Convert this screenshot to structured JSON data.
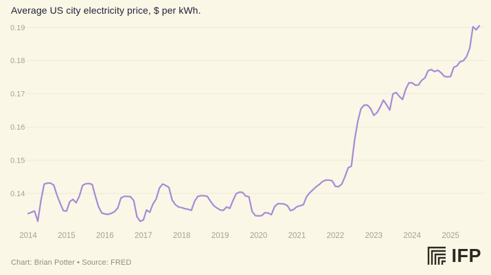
{
  "title": "Average US city electricity price, $ per kWh.",
  "footer": {
    "credit": "Chart: Brian Potter • Source: FRED",
    "logo_text": "IFP"
  },
  "colors": {
    "background": "#FAF7E6",
    "line": "#A78BD9",
    "grid": "#ECE9D7",
    "axis_label": "#A5A296",
    "title_text": "#22213A",
    "footer_text": "#8F8D82",
    "logo": "#2B2A20"
  },
  "chart_data": {
    "type": "line",
    "title": "Average US city electricity price, $ per kWh.",
    "xlabel": "",
    "ylabel": "$ per kWh",
    "grid": "horizontal",
    "legend": "none",
    "x_tick_labels": [
      "2014",
      "2015",
      "2016",
      "2017",
      "2018",
      "2019",
      "2020",
      "2021",
      "2022",
      "2023",
      "2024",
      "2025"
    ],
    "y_ticks": [
      0.14,
      0.15,
      0.16,
      0.17,
      0.18,
      0.19
    ],
    "ylim": [
      0.131,
      0.192
    ],
    "series": [
      {
        "name": "Average US city electricity price ($ per kWh)",
        "frequency": "monthly",
        "start": "2014-01",
        "end": "2025-10",
        "values": [
          0.1339,
          0.1343,
          0.1347,
          0.1316,
          0.1378,
          0.1428,
          0.1431,
          0.1431,
          0.1425,
          0.1395,
          0.137,
          0.1348,
          0.1347,
          0.1375,
          0.1382,
          0.1372,
          0.1392,
          0.1424,
          0.1429,
          0.143,
          0.1427,
          0.1392,
          0.136,
          0.1341,
          0.1338,
          0.1337,
          0.134,
          0.1345,
          0.1356,
          0.1386,
          0.1391,
          0.1391,
          0.139,
          0.1378,
          0.133,
          0.1316,
          0.132,
          0.135,
          0.1343,
          0.1368,
          0.1383,
          0.1416,
          0.1428,
          0.1424,
          0.1418,
          0.138,
          0.1366,
          0.1359,
          0.1357,
          0.1354,
          0.1352,
          0.1349,
          0.1376,
          0.1391,
          0.1393,
          0.1393,
          0.1391,
          0.1376,
          0.1363,
          0.1356,
          0.135,
          0.1349,
          0.1359,
          0.1355,
          0.1378,
          0.1399,
          0.1404,
          0.1403,
          0.1392,
          0.139,
          0.1345,
          0.1333,
          0.1332,
          0.1333,
          0.1342,
          0.1341,
          0.1336,
          0.136,
          0.1369,
          0.1369,
          0.1368,
          0.1363,
          0.1348,
          0.1352,
          0.136,
          0.1363,
          0.1366,
          0.139,
          0.1402,
          0.1411,
          0.142,
          0.1427,
          0.1436,
          0.144,
          0.144,
          0.1438,
          0.1421,
          0.142,
          0.1428,
          0.145,
          0.1477,
          0.1482,
          0.156,
          0.1617,
          0.1655,
          0.1666,
          0.1666,
          0.1656,
          0.1635,
          0.1643,
          0.166,
          0.1681,
          0.1667,
          0.1651,
          0.17,
          0.1704,
          0.1692,
          0.1683,
          0.1714,
          0.1733,
          0.1733,
          0.1726,
          0.1727,
          0.1741,
          0.1748,
          0.177,
          0.1773,
          0.1767,
          0.1771,
          0.1764,
          0.1753,
          0.1751,
          0.1752,
          0.178,
          0.1784,
          0.1797,
          0.18,
          0.1812,
          0.1838,
          0.1902,
          0.1893,
          0.1905
        ]
      }
    ]
  }
}
